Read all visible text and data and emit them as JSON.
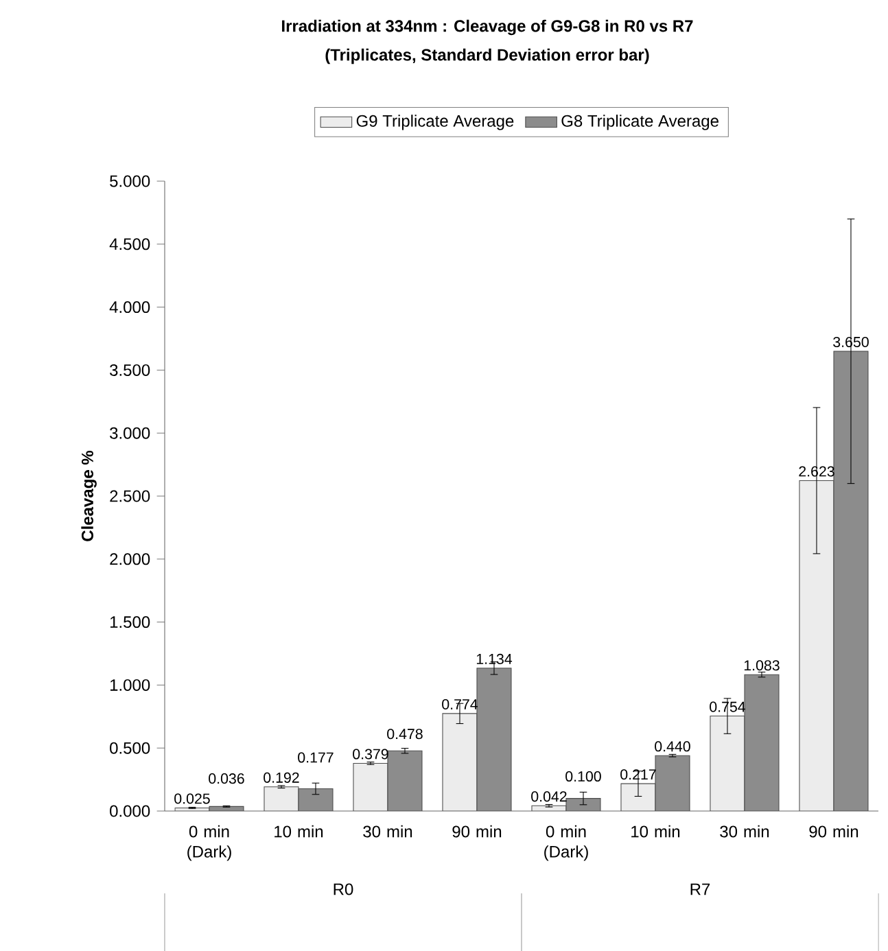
{
  "chart_data": {
    "type": "bar",
    "title": "Irradiation at 334nm : Cleavage of G9-G8 in R0 vs R7",
    "subtitle": "(Triplicates, Standard Deviation error bar)",
    "ylabel": "Cleavage %",
    "categories": [
      "0 min (Dark)",
      "10 min",
      "30 min",
      "90 min",
      "0 min (Dark)",
      "10 min",
      "30 min",
      "90 min"
    ],
    "series": [
      {
        "name": "G9 Triplicate Average",
        "color": "#ececec",
        "values": [
          0.025,
          0.192,
          0.379,
          0.774,
          0.042,
          0.217,
          0.754,
          2.623
        ],
        "errors": [
          0.005,
          0.01,
          0.01,
          0.08,
          0.01,
          0.1,
          0.14,
          0.58
        ],
        "value_labels": [
          "0.025",
          "0.192",
          "0.379",
          "0.774",
          "0.042",
          "0.217",
          "0.754",
          "2.623"
        ]
      },
      {
        "name": "G8 Triplicate Average",
        "color": "#8c8c8c",
        "values": [
          0.036,
          0.177,
          0.478,
          1.134,
          0.1,
          0.44,
          1.083,
          3.65
        ],
        "errors": [
          0.005,
          0.045,
          0.02,
          0.05,
          0.05,
          0.01,
          0.02,
          1.05
        ],
        "value_labels": [
          "0.036",
          "0.177",
          "0.478",
          "1.134",
          "0.100",
          "0.440",
          "1.083",
          "3.650"
        ]
      }
    ],
    "ylim": [
      0,
      5
    ],
    "yticks": [
      {
        "value": 0,
        "label": "0.000"
      },
      {
        "value": 0.5,
        "label": "0.500"
      },
      {
        "value": 1,
        "label": "1.000"
      },
      {
        "value": 1.5,
        "label": "1.500"
      },
      {
        "value": 2,
        "label": "2.000"
      },
      {
        "value": 2.5,
        "label": "2.500"
      },
      {
        "value": 3,
        "label": "3.000"
      },
      {
        "value": 3.5,
        "label": "3.500"
      },
      {
        "value": 4,
        "label": "4.000"
      },
      {
        "value": 4.5,
        "label": "4.500"
      },
      {
        "value": 5,
        "label": "5.000"
      }
    ],
    "legend": "top",
    "annotations": [
      "R0",
      "R7"
    ]
  }
}
